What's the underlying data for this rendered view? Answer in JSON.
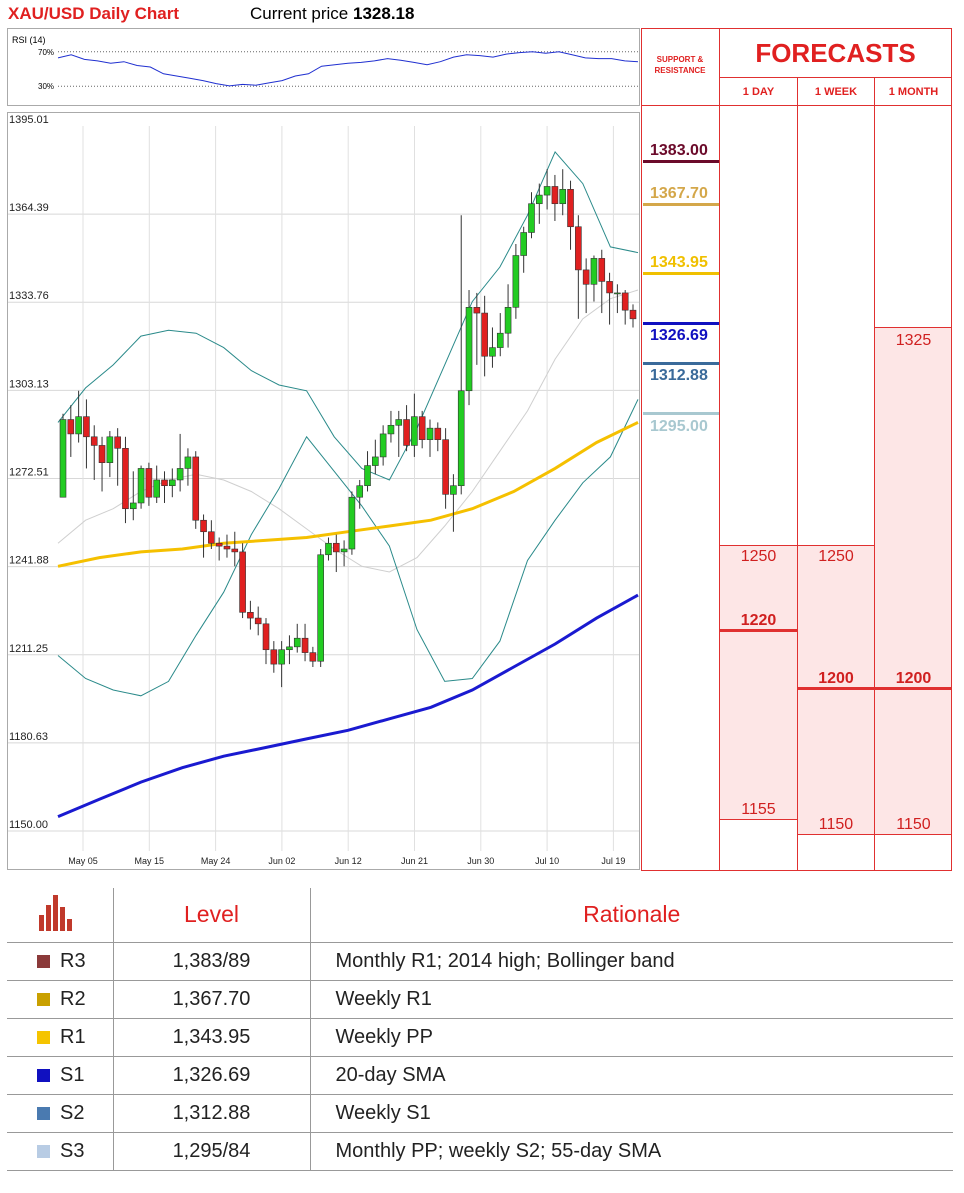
{
  "header": {
    "title": "XAU/USD Daily Chart",
    "price_label": "Current price",
    "price_value": "1328.18"
  },
  "rsi": {
    "label": "RSI (14)",
    "level_70": "70%",
    "level_30": "30%",
    "values": [
      62,
      66,
      60,
      58,
      55,
      57,
      52,
      50,
      49,
      46,
      43,
      40,
      36,
      33,
      35,
      34,
      37,
      40,
      46,
      49,
      51,
      53,
      55,
      56,
      58,
      61,
      59,
      56,
      53,
      57,
      63,
      66,
      65,
      63,
      67,
      69,
      70,
      68,
      70,
      66,
      62,
      61,
      61,
      58,
      57
    ]
  },
  "chart_data": {
    "type": "candlestick",
    "title": "XAU/USD Daily Chart",
    "y_ticks": [
      "1395.01",
      "1364.39",
      "1333.76",
      "1303.13",
      "1272.51",
      "1241.88",
      "1211.25",
      "1180.63",
      "1150.00"
    ],
    "ylim": [
      1150.0,
      1395.01
    ],
    "x_ticks": [
      "May 05",
      "May 15",
      "May 24",
      "Jun 02",
      "Jun 12",
      "Jun 21",
      "Jun 30",
      "Jul 10",
      "Jul 19"
    ],
    "grid": true,
    "candles": [
      [
        1266,
        1293,
        1295,
        1266
      ],
      [
        1293,
        1288,
        1298,
        1280
      ],
      [
        1288,
        1294,
        1303,
        1285
      ],
      [
        1294,
        1287,
        1300,
        1276
      ],
      [
        1287,
        1284,
        1291,
        1272
      ],
      [
        1284,
        1278,
        1287,
        1268
      ],
      [
        1278,
        1287,
        1289,
        1273
      ],
      [
        1287,
        1283,
        1290,
        1270
      ],
      [
        1283,
        1262,
        1287,
        1257
      ],
      [
        1262,
        1264,
        1275,
        1258
      ],
      [
        1264,
        1276,
        1277,
        1262
      ],
      [
        1276,
        1266,
        1278,
        1263
      ],
      [
        1266,
        1272,
        1277,
        1264
      ],
      [
        1272,
        1270,
        1275,
        1264
      ],
      [
        1270,
        1272,
        1276,
        1266
      ],
      [
        1272,
        1276,
        1288,
        1268
      ],
      [
        1276,
        1280,
        1283,
        1270
      ],
      [
        1280,
        1258,
        1282,
        1255
      ],
      [
        1258,
        1254,
        1260,
        1245
      ],
      [
        1254,
        1250,
        1258,
        1248
      ],
      [
        1250,
        1249,
        1252,
        1244
      ],
      [
        1249,
        1248,
        1253,
        1245
      ],
      [
        1248,
        1247,
        1254,
        1242
      ],
      [
        1247,
        1226,
        1250,
        1224
      ],
      [
        1226,
        1224,
        1230,
        1220
      ],
      [
        1224,
        1222,
        1228,
        1218
      ],
      [
        1222,
        1213,
        1224,
        1208
      ],
      [
        1213,
        1208,
        1216,
        1205
      ],
      [
        1208,
        1213,
        1216,
        1200
      ],
      [
        1213,
        1214,
        1218,
        1208
      ],
      [
        1214,
        1217,
        1222,
        1212
      ],
      [
        1217,
        1212,
        1222,
        1209
      ],
      [
        1212,
        1209,
        1214,
        1207
      ],
      [
        1209,
        1246,
        1248,
        1207
      ],
      [
        1246,
        1250,
        1252,
        1244
      ],
      [
        1250,
        1247,
        1253,
        1240
      ],
      [
        1247,
        1248,
        1251,
        1242
      ],
      [
        1248,
        1266,
        1268,
        1246
      ],
      [
        1266,
        1270,
        1272,
        1262
      ],
      [
        1270,
        1277,
        1282,
        1268
      ],
      [
        1277,
        1280,
        1286,
        1274
      ],
      [
        1280,
        1288,
        1291,
        1277
      ],
      [
        1288,
        1291,
        1296,
        1285
      ],
      [
        1291,
        1293,
        1296,
        1280
      ],
      [
        1293,
        1284,
        1298,
        1282
      ],
      [
        1284,
        1294,
        1302,
        1280
      ],
      [
        1294,
        1286,
        1296,
        1283
      ],
      [
        1286,
        1290,
        1293,
        1280
      ],
      [
        1290,
        1286,
        1292,
        1282
      ],
      [
        1286,
        1267,
        1290,
        1262
      ],
      [
        1267,
        1270,
        1274,
        1254
      ],
      [
        1270,
        1303,
        1364,
        1267
      ],
      [
        1303,
        1332,
        1338,
        1298
      ],
      [
        1332,
        1330,
        1337,
        1312
      ],
      [
        1330,
        1315,
        1336,
        1308
      ],
      [
        1315,
        1318,
        1325,
        1311
      ],
      [
        1318,
        1323,
        1330,
        1315
      ],
      [
        1323,
        1332,
        1340,
        1318
      ],
      [
        1332,
        1350,
        1354,
        1328
      ],
      [
        1350,
        1358,
        1360,
        1344
      ],
      [
        1358,
        1368,
        1372,
        1356
      ],
      [
        1368,
        1371,
        1375,
        1361
      ],
      [
        1371,
        1374,
        1380,
        1366
      ],
      [
        1374,
        1368,
        1378,
        1362
      ],
      [
        1368,
        1373,
        1380,
        1364
      ],
      [
        1373,
        1360,
        1376,
        1352
      ],
      [
        1360,
        1345,
        1364,
        1328
      ],
      [
        1345,
        1340,
        1349,
        1330
      ],
      [
        1340,
        1349,
        1350,
        1334
      ],
      [
        1349,
        1341,
        1352,
        1330
      ],
      [
        1341,
        1337,
        1344,
        1326
      ],
      [
        1337,
        1337,
        1340,
        1330
      ],
      [
        1337,
        1331,
        1338,
        1326
      ],
      [
        1331,
        1328,
        1333,
        1325
      ]
    ],
    "sma55": [
      1242,
      1245,
      1247,
      1248,
      1250,
      1251,
      1252,
      1254,
      1256,
      1258,
      1262,
      1268,
      1276,
      1285,
      1292
    ],
    "sma200": [
      1155,
      1161,
      1167,
      1172,
      1176,
      1179,
      1182,
      1185,
      1189,
      1193,
      1199,
      1207,
      1215,
      1224,
      1232
    ],
    "bb_upper": [
      1292,
      1304,
      1312,
      1322,
      1324,
      1323,
      1318,
      1310,
      1305,
      1303,
      1287,
      1276,
      1272,
      1290,
      1312,
      1334,
      1346,
      1364,
      1386,
      1375,
      1353,
      1351
    ],
    "bb_lower": [
      1211,
      1203,
      1199,
      1197,
      1202,
      1218,
      1233,
      1253,
      1269,
      1287,
      1275,
      1263,
      1249,
      1220,
      1202,
      1203,
      1216,
      1244,
      1258,
      1271,
      1280,
      1300
    ],
    "bb_mid": [
      1250,
      1258,
      1262,
      1268,
      1272,
      1274,
      1272,
      1268,
      1262,
      1255,
      1248,
      1242,
      1240,
      1245,
      1256,
      1268,
      1282,
      1296,
      1314,
      1328,
      1335,
      1338
    ],
    "support_resistance": [
      {
        "value": "1383.00",
        "color": "#6b0a2a"
      },
      {
        "value": "1367.70",
        "color": "#d4a74a"
      },
      {
        "value": "1343.95",
        "color": "#f0c000"
      },
      {
        "value": "1326.69",
        "color": "#1010c0"
      },
      {
        "value": "1312.88",
        "color": "#3a6a9a"
      },
      {
        "value": "1295.00",
        "color": "#a8c8d0"
      }
    ]
  },
  "forecasts": {
    "title": "FORECASTS",
    "sr_label": "SUPPORT & RESISTANCE",
    "columns": [
      {
        "label": "1 DAY",
        "high": "1250",
        "mid": "1220",
        "low": "1155"
      },
      {
        "label": "1 WEEK",
        "high": "1250",
        "mid": "1200",
        "low": "1150"
      },
      {
        "label": "1 MONTH",
        "high": "1325",
        "mid": "1200",
        "low": "1150"
      }
    ]
  },
  "table": {
    "col_level": "Level",
    "col_rationale": "Rationale",
    "rows": [
      {
        "name": "R3",
        "level": "1,383/89",
        "rationale": "Monthly R1; 2014 high; Bollinger band",
        "color": "#8b3a3a"
      },
      {
        "name": "R2",
        "level": "1,367.70",
        "rationale": "Weekly R1",
        "color": "#c9a000"
      },
      {
        "name": "R1",
        "level": "1,343.95",
        "rationale": "Weekly PP",
        "color": "#f5c400"
      },
      {
        "name": "S1",
        "level": "1,326.69",
        "rationale": "20-day SMA",
        "color": "#1010c0"
      },
      {
        "name": "S2",
        "level": "1,312.88",
        "rationale": "Weekly S1",
        "color": "#4a7ab0"
      },
      {
        "name": "S3",
        "level": "1,295/84",
        "rationale": "Monthly PP; weekly S2; 55-day SMA",
        "color": "#b8cce4"
      }
    ]
  }
}
